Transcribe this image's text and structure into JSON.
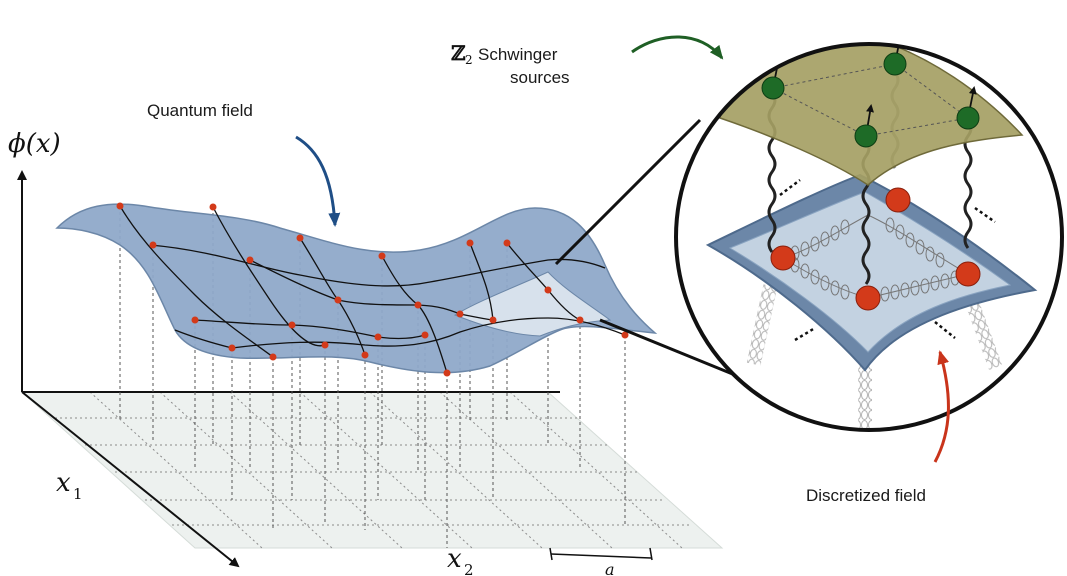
{
  "labels": {
    "quantum_field": "Quantum field",
    "schwinger_symbol": "ℤ",
    "schwinger_subscript": "2",
    "schwinger_line1": "Schwinger",
    "schwinger_line2": "sources",
    "discretized_field": "Discretized field",
    "phi_axis": "ϕ(x)",
    "x1_var": "x",
    "x1_sub": "1",
    "x2_var": "x",
    "x2_sub": "2",
    "spacing": "a"
  },
  "colors": {
    "field_fill": "#8fa9c9",
    "field_stroke": "#6c87a8",
    "lattice_plane": "#dfe7e3",
    "site_red": "#d33a1a",
    "site_green": "#1e6b27",
    "source_plane": "#a5a064",
    "arrow_blue": "#1f4e86",
    "arrow_green": "#1f5f25",
    "arrow_red": "#c9341b"
  }
}
